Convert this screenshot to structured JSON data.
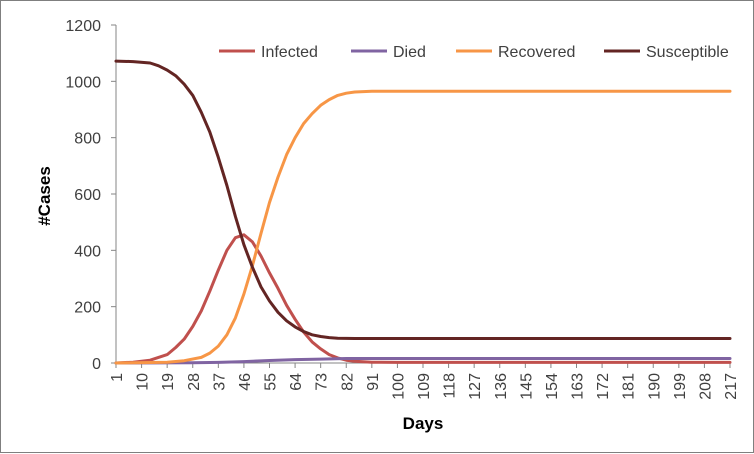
{
  "chart_data": {
    "type": "line",
    "xlabel": "Days",
    "ylabel": "#Cases",
    "ylim": [
      0,
      1200
    ],
    "yticks": [
      0,
      200,
      400,
      600,
      800,
      1000,
      1200
    ],
    "xlim": [
      1,
      217
    ],
    "xticks": [
      1,
      10,
      19,
      28,
      37,
      46,
      55,
      64,
      73,
      82,
      91,
      100,
      109,
      118,
      127,
      136,
      145,
      154,
      163,
      172,
      181,
      190,
      199,
      208,
      217
    ],
    "grid": false,
    "legend_position": "top-right",
    "series": [
      {
        "name": "Infected",
        "color": "#c0504d",
        "points": [
          [
            1,
            0
          ],
          [
            7,
            3
          ],
          [
            13,
            10
          ],
          [
            19,
            30
          ],
          [
            22,
            55
          ],
          [
            25,
            85
          ],
          [
            28,
            130
          ],
          [
            31,
            185
          ],
          [
            34,
            255
          ],
          [
            37,
            330
          ],
          [
            40,
            400
          ],
          [
            43,
            445
          ],
          [
            46,
            455
          ],
          [
            49,
            430
          ],
          [
            52,
            380
          ],
          [
            55,
            320
          ],
          [
            58,
            265
          ],
          [
            61,
            205
          ],
          [
            64,
            155
          ],
          [
            67,
            110
          ],
          [
            70,
            75
          ],
          [
            73,
            50
          ],
          [
            76,
            30
          ],
          [
            79,
            18
          ],
          [
            82,
            10
          ],
          [
            85,
            6
          ],
          [
            91,
            3
          ],
          [
            100,
            2
          ],
          [
            217,
            2
          ]
        ]
      },
      {
        "name": "Died",
        "color": "#8064a2",
        "points": [
          [
            1,
            0
          ],
          [
            28,
            1
          ],
          [
            37,
            2
          ],
          [
            46,
            5
          ],
          [
            55,
            9
          ],
          [
            64,
            12
          ],
          [
            73,
            14
          ],
          [
            82,
            16
          ],
          [
            91,
            16
          ],
          [
            217,
            16
          ]
        ]
      },
      {
        "name": "Recovered",
        "color": "#f79646",
        "points": [
          [
            1,
            0
          ],
          [
            19,
            3
          ],
          [
            25,
            8
          ],
          [
            31,
            20
          ],
          [
            34,
            35
          ],
          [
            37,
            60
          ],
          [
            40,
            100
          ],
          [
            43,
            160
          ],
          [
            46,
            245
          ],
          [
            49,
            345
          ],
          [
            52,
            460
          ],
          [
            55,
            570
          ],
          [
            58,
            660
          ],
          [
            61,
            740
          ],
          [
            64,
            800
          ],
          [
            67,
            850
          ],
          [
            70,
            885
          ],
          [
            73,
            915
          ],
          [
            76,
            935
          ],
          [
            79,
            950
          ],
          [
            82,
            958
          ],
          [
            85,
            962
          ],
          [
            91,
            965
          ],
          [
            100,
            965
          ],
          [
            217,
            965
          ]
        ]
      },
      {
        "name": "Susceptible",
        "color": "#632523",
        "points": [
          [
            1,
            1072
          ],
          [
            7,
            1070
          ],
          [
            13,
            1065
          ],
          [
            16,
            1055
          ],
          [
            19,
            1040
          ],
          [
            22,
            1020
          ],
          [
            25,
            990
          ],
          [
            28,
            950
          ],
          [
            31,
            890
          ],
          [
            34,
            820
          ],
          [
            37,
            730
          ],
          [
            40,
            630
          ],
          [
            43,
            520
          ],
          [
            46,
            420
          ],
          [
            49,
            340
          ],
          [
            52,
            270
          ],
          [
            55,
            220
          ],
          [
            58,
            180
          ],
          [
            61,
            150
          ],
          [
            64,
            128
          ],
          [
            67,
            112
          ],
          [
            70,
            100
          ],
          [
            73,
            94
          ],
          [
            76,
            90
          ],
          [
            79,
            88
          ],
          [
            85,
            87
          ],
          [
            217,
            87
          ]
        ]
      }
    ]
  }
}
